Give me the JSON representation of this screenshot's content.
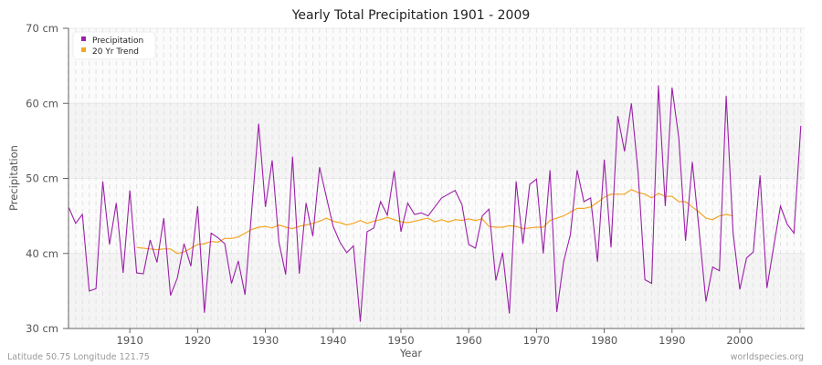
{
  "chart_data": {
    "type": "line",
    "title": "Yearly Total Precipitation 1901 - 2009",
    "xlabel": "Year",
    "ylabel": "Precipitation",
    "ylim": [
      30,
      70
    ],
    "xlim": [
      1901,
      2009
    ],
    "yticks": [
      30,
      40,
      50,
      60,
      70
    ],
    "ytick_labels": [
      "30 cm",
      "40 cm",
      "50 cm",
      "60 cm",
      "70 cm"
    ],
    "xticks": [
      1910,
      1920,
      1930,
      1940,
      1950,
      1960,
      1970,
      1980,
      1990,
      2000
    ],
    "xtick_labels": [
      "1910",
      "1920",
      "1930",
      "1940",
      "1950",
      "1960",
      "1970",
      "1980",
      "1990",
      "2000"
    ],
    "grid": true,
    "legend_position": "top-left",
    "series": [
      {
        "name": "Precipitation",
        "color": "#9b1fa8",
        "x_start": 1901,
        "values": [
          46.1,
          44.0,
          45.2,
          35.0,
          35.3,
          49.6,
          41.2,
          46.7,
          37.4,
          48.4,
          37.4,
          37.3,
          41.8,
          38.8,
          44.7,
          34.4,
          36.7,
          41.3,
          38.3,
          46.3,
          32.1,
          42.7,
          42.1,
          41.3,
          36.0,
          39.0,
          34.5,
          45.9,
          57.3,
          46.2,
          52.4,
          41.5,
          37.2,
          52.9,
          37.3,
          46.7,
          42.3,
          51.5,
          47.5,
          43.6,
          41.5,
          40.1,
          41.0,
          30.9,
          42.9,
          43.4,
          46.9,
          45.1,
          51.0,
          42.9,
          46.7,
          45.2,
          45.4,
          45.0,
          46.2,
          47.4,
          47.9,
          48.4,
          46.5,
          41.2,
          40.7,
          45.0,
          45.9,
          36.4,
          40.1,
          32.0,
          49.6,
          41.3,
          49.2,
          49.9,
          40.0,
          51.1,
          32.2,
          38.9,
          42.5,
          51.1,
          46.9,
          47.4,
          38.9,
          52.5,
          40.8,
          58.3,
          53.6,
          60.0,
          50.7,
          36.5,
          36.0,
          62.4,
          46.3,
          62.1,
          55.4,
          41.7,
          52.2,
          43.0,
          33.6,
          38.2,
          37.7,
          61.0,
          42.8,
          35.2,
          39.4,
          40.2,
          50.4,
          35.4,
          40.9,
          46.3,
          43.9,
          42.7,
          57.0
        ]
      },
      {
        "name": "20 Yr Trend",
        "color": "#f5a623",
        "x_start": 1911,
        "values": [
          40.8,
          40.7,
          40.6,
          40.5,
          40.6,
          40.6,
          40.0,
          40.2,
          40.7,
          41.2,
          41.3,
          41.6,
          41.5,
          42.0,
          42.0,
          42.2,
          42.7,
          43.2,
          43.5,
          43.6,
          43.4,
          43.8,
          43.5,
          43.3,
          43.6,
          43.8,
          44.0,
          44.3,
          44.7,
          44.3,
          44.1,
          43.8,
          44.0,
          44.4,
          44.0,
          44.3,
          44.5,
          44.8,
          44.5,
          44.2,
          44.1,
          44.3,
          44.5,
          44.7,
          44.2,
          44.5,
          44.2,
          44.5,
          44.4,
          44.6,
          44.4,
          44.6,
          43.6,
          43.5,
          43.5,
          43.7,
          43.6,
          43.3,
          43.4,
          43.5,
          43.5,
          44.4,
          44.7,
          45.0,
          45.5,
          46.0,
          46.0,
          46.2,
          46.8,
          47.5,
          47.9,
          47.9,
          47.9,
          48.5,
          48.1,
          47.9,
          47.4,
          48.0,
          47.6,
          47.6,
          46.9,
          46.9,
          46.2,
          45.5,
          44.7,
          44.5,
          45.0,
          45.2,
          45.0
        ]
      }
    ]
  },
  "header": {
    "title": "Yearly Total Precipitation 1901 - 2009"
  },
  "legend": {
    "items": [
      {
        "label": "Precipitation",
        "color": "#9b1fa8"
      },
      {
        "label": "20 Yr Trend",
        "color": "#f5a623"
      }
    ]
  },
  "axes": {
    "xlabel": "Year",
    "ylabel": "Precipitation"
  },
  "footer": {
    "location": "Latitude 50.75 Longitude 121.75",
    "source": "worldspecies.org"
  }
}
